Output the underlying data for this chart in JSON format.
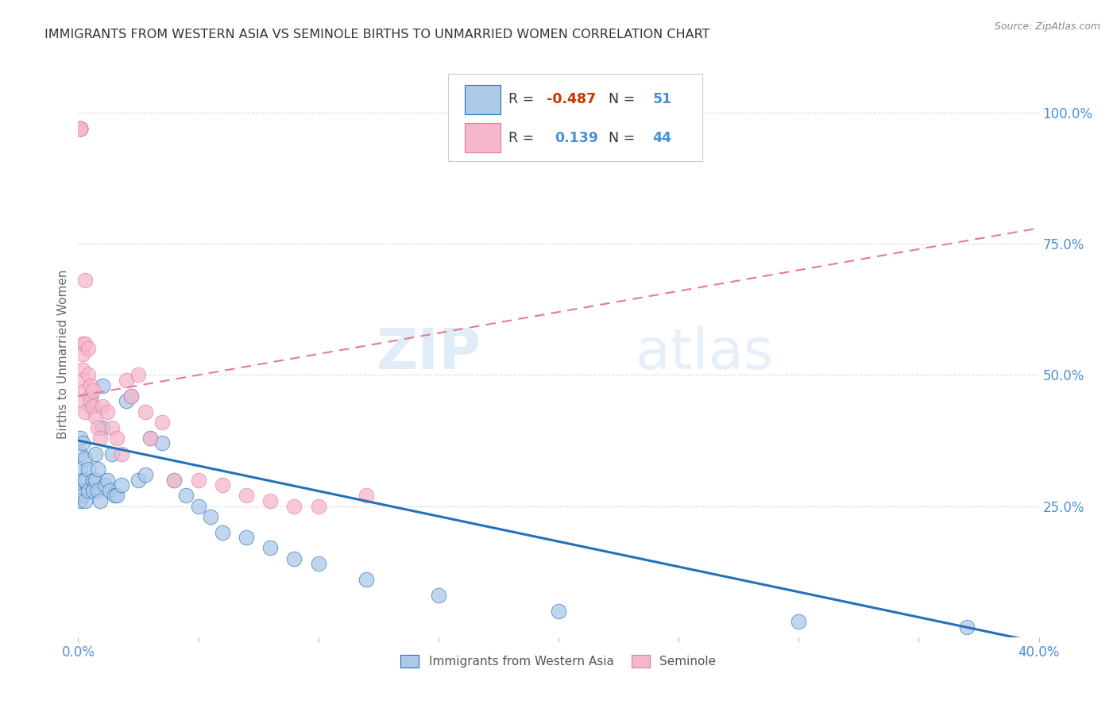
{
  "title": "IMMIGRANTS FROM WESTERN ASIA VS SEMINOLE BIRTHS TO UNMARRIED WOMEN CORRELATION CHART",
  "source": "Source: ZipAtlas.com",
  "ylabel": "Births to Unmarried Women",
  "right_yticks": [
    "100.0%",
    "75.0%",
    "50.0%",
    "25.0%"
  ],
  "right_ytick_vals": [
    1.0,
    0.75,
    0.5,
    0.25
  ],
  "legend_labels": [
    "Immigrants from Western Asia",
    "Seminole"
  ],
  "blue_R": "-0.487",
  "blue_N": "51",
  "pink_R": "0.139",
  "pink_N": "44",
  "blue_color": "#adc9e8",
  "pink_color": "#f5b8cb",
  "blue_line_color": "#2471b8",
  "pink_line_color": "#e8799a",
  "watermark_zip": "ZIP",
  "watermark_atlas": "atlas",
  "background_color": "#ffffff",
  "blue_scatter_x": [
    0.001,
    0.001,
    0.001,
    0.001,
    0.001,
    0.002,
    0.002,
    0.002,
    0.003,
    0.003,
    0.003,
    0.004,
    0.004,
    0.005,
    0.005,
    0.006,
    0.006,
    0.007,
    0.007,
    0.008,
    0.008,
    0.009,
    0.01,
    0.01,
    0.011,
    0.012,
    0.013,
    0.014,
    0.015,
    0.016,
    0.018,
    0.02,
    0.022,
    0.025,
    0.028,
    0.03,
    0.035,
    0.04,
    0.045,
    0.05,
    0.055,
    0.06,
    0.07,
    0.08,
    0.09,
    0.1,
    0.12,
    0.15,
    0.2,
    0.3,
    0.37
  ],
  "blue_scatter_y": [
    0.38,
    0.35,
    0.32,
    0.28,
    0.26,
    0.37,
    0.3,
    0.27,
    0.34,
    0.3,
    0.26,
    0.28,
    0.32,
    0.46,
    0.44,
    0.3,
    0.28,
    0.35,
    0.3,
    0.32,
    0.28,
    0.26,
    0.48,
    0.4,
    0.29,
    0.3,
    0.28,
    0.35,
    0.27,
    0.27,
    0.29,
    0.45,
    0.46,
    0.3,
    0.31,
    0.38,
    0.37,
    0.3,
    0.27,
    0.25,
    0.23,
    0.2,
    0.19,
    0.17,
    0.15,
    0.14,
    0.11,
    0.08,
    0.05,
    0.03,
    0.02
  ],
  "pink_scatter_x": [
    0.001,
    0.001,
    0.001,
    0.001,
    0.001,
    0.001,
    0.001,
    0.002,
    0.002,
    0.002,
    0.002,
    0.002,
    0.003,
    0.003,
    0.003,
    0.003,
    0.004,
    0.004,
    0.005,
    0.005,
    0.006,
    0.006,
    0.007,
    0.008,
    0.009,
    0.01,
    0.012,
    0.014,
    0.016,
    0.018,
    0.02,
    0.022,
    0.025,
    0.028,
    0.03,
    0.035,
    0.04,
    0.05,
    0.06,
    0.07,
    0.08,
    0.09,
    0.1,
    0.12
  ],
  "pink_scatter_y": [
    0.97,
    0.97,
    0.97,
    0.97,
    0.97,
    0.97,
    0.97,
    0.56,
    0.54,
    0.51,
    0.49,
    0.45,
    0.68,
    0.56,
    0.47,
    0.43,
    0.55,
    0.5,
    0.48,
    0.45,
    0.47,
    0.44,
    0.42,
    0.4,
    0.38,
    0.44,
    0.43,
    0.4,
    0.38,
    0.35,
    0.49,
    0.46,
    0.5,
    0.43,
    0.38,
    0.41,
    0.3,
    0.3,
    0.29,
    0.27,
    0.26,
    0.25,
    0.25,
    0.27
  ]
}
